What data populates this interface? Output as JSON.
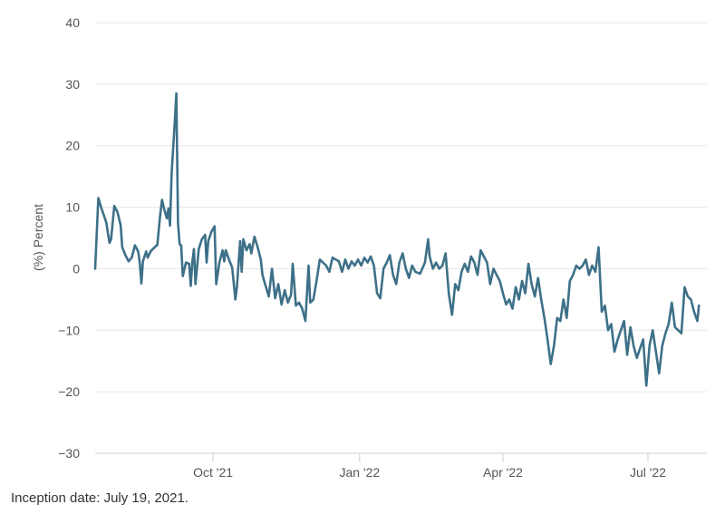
{
  "chart_data": {
    "type": "line",
    "ylabel": "(%) Percent",
    "ylim": [
      -30,
      40
    ],
    "yticks": [
      -30,
      -20,
      -10,
      0,
      10,
      20,
      30,
      40
    ],
    "ytick_labels": [
      "−30",
      "−20",
      "−10",
      "0",
      "10",
      "20",
      "30",
      "40"
    ],
    "xlim": [
      "2021-07-19",
      "2022-08-07"
    ],
    "xticks": [
      {
        "date": "2021-10-01",
        "label": "Oct '21"
      },
      {
        "date": "2022-01-01",
        "label": "Jan '22"
      },
      {
        "date": "2022-04-01",
        "label": "Apr '22"
      },
      {
        "date": "2022-07-01",
        "label": "Jul '22"
      }
    ],
    "grid": "horizontal",
    "line_color": "#3d7088",
    "series": [
      {
        "points": [
          [
            "2021-07-19",
            0
          ],
          [
            "2021-07-21",
            11.5
          ],
          [
            "2021-07-23",
            9.8
          ],
          [
            "2021-07-26",
            7.5
          ],
          [
            "2021-07-28",
            4.2
          ],
          [
            "2021-07-29",
            4.8
          ],
          [
            "2021-07-31",
            10.2
          ],
          [
            "2021-08-02",
            9.2
          ],
          [
            "2021-08-04",
            7.1
          ],
          [
            "2021-08-05",
            3.5
          ],
          [
            "2021-08-07",
            2.2
          ],
          [
            "2021-08-09",
            1.2
          ],
          [
            "2021-08-11",
            1.8
          ],
          [
            "2021-08-13",
            3.8
          ],
          [
            "2021-08-15",
            2.8
          ],
          [
            "2021-08-16",
            1.0
          ],
          [
            "2021-08-17",
            -2.4
          ],
          [
            "2021-08-18",
            1.2
          ],
          [
            "2021-08-20",
            2.8
          ],
          [
            "2021-08-21",
            1.8
          ],
          [
            "2021-08-23",
            2.9
          ],
          [
            "2021-08-25",
            3.4
          ],
          [
            "2021-08-27",
            3.9
          ],
          [
            "2021-08-28",
            6.5
          ],
          [
            "2021-08-29",
            9.2
          ],
          [
            "2021-08-30",
            11.2
          ],
          [
            "2021-08-31",
            10.0
          ],
          [
            "2021-09-02",
            8.2
          ],
          [
            "2021-09-03",
            9.8
          ],
          [
            "2021-09-04",
            7.0
          ],
          [
            "2021-09-05",
            15.5
          ],
          [
            "2021-09-07",
            24.0
          ],
          [
            "2021-09-08",
            28.5
          ],
          [
            "2021-09-09",
            7.5
          ],
          [
            "2021-09-10",
            4.0
          ],
          [
            "2021-09-11",
            3.8
          ],
          [
            "2021-09-12",
            -1.2
          ],
          [
            "2021-09-14",
            1.0
          ],
          [
            "2021-09-16",
            0.8
          ],
          [
            "2021-09-17",
            -2.8
          ],
          [
            "2021-09-18",
            1.0
          ],
          [
            "2021-09-19",
            3.2
          ],
          [
            "2021-09-20",
            -2.5
          ],
          [
            "2021-09-22",
            3.2
          ],
          [
            "2021-09-24",
            4.8
          ],
          [
            "2021-09-26",
            5.5
          ],
          [
            "2021-09-27",
            1.0
          ],
          [
            "2021-09-28",
            4.5
          ],
          [
            "2021-09-30",
            6.0
          ],
          [
            "2021-10-02",
            6.9
          ],
          [
            "2021-10-03",
            -2.5
          ],
          [
            "2021-10-05",
            1.0
          ],
          [
            "2021-10-07",
            3.0
          ],
          [
            "2021-10-08",
            1.2
          ],
          [
            "2021-10-09",
            3.0
          ],
          [
            "2021-10-11",
            1.5
          ],
          [
            "2021-10-13",
            0.2
          ],
          [
            "2021-10-15",
            -5.0
          ],
          [
            "2021-10-16",
            -3.0
          ],
          [
            "2021-10-18",
            4.5
          ],
          [
            "2021-10-19",
            -0.5
          ],
          [
            "2021-10-20",
            4.8
          ],
          [
            "2021-10-22",
            3.0
          ],
          [
            "2021-10-24",
            4.0
          ],
          [
            "2021-10-25",
            2.5
          ],
          [
            "2021-10-27",
            5.2
          ],
          [
            "2021-10-29",
            3.5
          ],
          [
            "2021-10-31",
            1.5
          ],
          [
            "2021-11-01",
            -1.0
          ],
          [
            "2021-11-03",
            -2.8
          ],
          [
            "2021-11-05",
            -4.5
          ],
          [
            "2021-11-07",
            0
          ],
          [
            "2021-11-09",
            -4.8
          ],
          [
            "2021-11-11",
            -2.5
          ],
          [
            "2021-11-13",
            -5.8
          ],
          [
            "2021-11-15",
            -3.5
          ],
          [
            "2021-11-17",
            -5.5
          ],
          [
            "2021-11-19",
            -4.2
          ],
          [
            "2021-11-20",
            0.8
          ],
          [
            "2021-11-22",
            -6.0
          ],
          [
            "2021-11-24",
            -5.5
          ],
          [
            "2021-11-26",
            -6.5
          ],
          [
            "2021-11-28",
            -8.5
          ],
          [
            "2021-11-30",
            0.5
          ],
          [
            "2021-12-01",
            -5.5
          ],
          [
            "2021-12-03",
            -5.0
          ],
          [
            "2021-12-05",
            -2.0
          ],
          [
            "2021-12-07",
            1.5
          ],
          [
            "2021-12-09",
            1.0
          ],
          [
            "2021-12-11",
            0.5
          ],
          [
            "2021-12-13",
            -0.5
          ],
          [
            "2021-12-15",
            1.8
          ],
          [
            "2021-12-17",
            1.5
          ],
          [
            "2021-12-19",
            1.2
          ],
          [
            "2021-12-21",
            -0.5
          ],
          [
            "2021-12-23",
            1.5
          ],
          [
            "2021-12-25",
            0
          ],
          [
            "2021-12-27",
            1.2
          ],
          [
            "2021-12-29",
            0.5
          ],
          [
            "2021-12-31",
            1.5
          ],
          [
            "2022-01-02",
            0.5
          ],
          [
            "2022-01-04",
            1.8
          ],
          [
            "2022-01-06",
            1.0
          ],
          [
            "2022-01-08",
            2.0
          ],
          [
            "2022-01-10",
            0.5
          ],
          [
            "2022-01-12",
            -4.0
          ],
          [
            "2022-01-14",
            -4.8
          ],
          [
            "2022-01-16",
            0
          ],
          [
            "2022-01-18",
            1.0
          ],
          [
            "2022-01-20",
            2.2
          ],
          [
            "2022-01-22",
            -1.0
          ],
          [
            "2022-01-24",
            -2.5
          ],
          [
            "2022-01-26",
            1.0
          ],
          [
            "2022-01-28",
            2.5
          ],
          [
            "2022-01-30",
            0
          ],
          [
            "2022-02-01",
            -1.5
          ],
          [
            "2022-02-03",
            0.5
          ],
          [
            "2022-02-05",
            -0.5
          ],
          [
            "2022-02-08",
            -0.8
          ],
          [
            "2022-02-11",
            1.0
          ],
          [
            "2022-02-13",
            4.8
          ],
          [
            "2022-02-14",
            2.0
          ],
          [
            "2022-02-16",
            0
          ],
          [
            "2022-02-18",
            1.0
          ],
          [
            "2022-02-20",
            0
          ],
          [
            "2022-02-22",
            0.5
          ],
          [
            "2022-02-24",
            2.5
          ],
          [
            "2022-02-26",
            -4.0
          ],
          [
            "2022-02-28",
            -7.5
          ],
          [
            "2022-03-02",
            -2.5
          ],
          [
            "2022-03-04",
            -3.5
          ],
          [
            "2022-03-06",
            -0.5
          ],
          [
            "2022-03-08",
            0.8
          ],
          [
            "2022-03-10",
            -0.5
          ],
          [
            "2022-03-12",
            2.0
          ],
          [
            "2022-03-14",
            1.0
          ],
          [
            "2022-03-16",
            -1.0
          ],
          [
            "2022-03-18",
            3.0
          ],
          [
            "2022-03-20",
            2.0
          ],
          [
            "2022-03-22",
            1.0
          ],
          [
            "2022-03-24",
            -2.5
          ],
          [
            "2022-03-26",
            0
          ],
          [
            "2022-03-28",
            -1.0
          ],
          [
            "2022-03-30",
            -2.0
          ],
          [
            "2022-04-01",
            -4.0
          ],
          [
            "2022-04-03",
            -5.8
          ],
          [
            "2022-04-05",
            -5.0
          ],
          [
            "2022-04-07",
            -6.5
          ],
          [
            "2022-04-09",
            -3.0
          ],
          [
            "2022-04-11",
            -5.0
          ],
          [
            "2022-04-13",
            -2.0
          ],
          [
            "2022-04-15",
            -4.0
          ],
          [
            "2022-04-17",
            0.8
          ],
          [
            "2022-04-19",
            -2.5
          ],
          [
            "2022-04-21",
            -4.5
          ],
          [
            "2022-04-23",
            -1.5
          ],
          [
            "2022-04-25",
            -5.0
          ],
          [
            "2022-04-27",
            -8.0
          ],
          [
            "2022-04-29",
            -11.5
          ],
          [
            "2022-05-01",
            -15.5
          ],
          [
            "2022-05-03",
            -12.5
          ],
          [
            "2022-05-05",
            -8.0
          ],
          [
            "2022-05-07",
            -8.5
          ],
          [
            "2022-05-09",
            -5.0
          ],
          [
            "2022-05-11",
            -8.0
          ],
          [
            "2022-05-13",
            -2.0
          ],
          [
            "2022-05-15",
            -1.0
          ],
          [
            "2022-05-17",
            0.5
          ],
          [
            "2022-05-19",
            0
          ],
          [
            "2022-05-21",
            0.5
          ],
          [
            "2022-05-23",
            1.5
          ],
          [
            "2022-05-25",
            -1.0
          ],
          [
            "2022-05-27",
            0.5
          ],
          [
            "2022-05-29",
            -0.5
          ],
          [
            "2022-05-31",
            3.5
          ],
          [
            "2022-06-02",
            -7.0
          ],
          [
            "2022-06-04",
            -6.0
          ],
          [
            "2022-06-06",
            -10.0
          ],
          [
            "2022-06-08",
            -9.0
          ],
          [
            "2022-06-10",
            -13.5
          ],
          [
            "2022-06-12",
            -11.5
          ],
          [
            "2022-06-14",
            -10.0
          ],
          [
            "2022-06-16",
            -8.5
          ],
          [
            "2022-06-18",
            -14.0
          ],
          [
            "2022-06-20",
            -9.5
          ],
          [
            "2022-06-22",
            -12.5
          ],
          [
            "2022-06-24",
            -14.5
          ],
          [
            "2022-06-26",
            -13.0
          ],
          [
            "2022-06-28",
            -11.5
          ],
          [
            "2022-06-30",
            -19.0
          ],
          [
            "2022-07-02",
            -12.5
          ],
          [
            "2022-07-04",
            -10.0
          ],
          [
            "2022-07-06",
            -13.5
          ],
          [
            "2022-07-08",
            -17.0
          ],
          [
            "2022-07-10",
            -12.5
          ],
          [
            "2022-07-12",
            -10.5
          ],
          [
            "2022-07-14",
            -9.0
          ],
          [
            "2022-07-16",
            -5.5
          ],
          [
            "2022-07-18",
            -9.5
          ],
          [
            "2022-07-20",
            -10.0
          ],
          [
            "2022-07-22",
            -10.5
          ],
          [
            "2022-07-24",
            -3.0
          ],
          [
            "2022-07-26",
            -4.5
          ],
          [
            "2022-07-28",
            -5.0
          ],
          [
            "2022-07-30",
            -7.0
          ],
          [
            "2022-08-01",
            -8.5
          ],
          [
            "2022-08-02",
            -6.0
          ]
        ]
      }
    ]
  },
  "footnote": "Inception date: July 19, 2021."
}
